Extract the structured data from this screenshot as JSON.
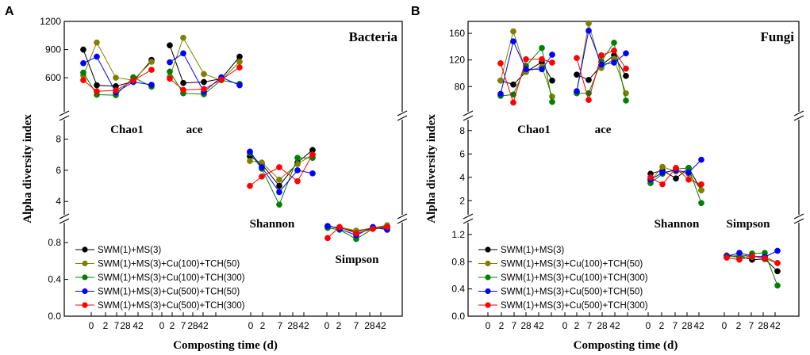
{
  "chart_data": [
    {
      "type": "line",
      "panel_letter": "A",
      "title": "Bacteria",
      "xlabel": "Composting time (d)",
      "ylabel": "Alpha diversity index",
      "days": [
        "0",
        "2",
        "7",
        "28",
        "42"
      ],
      "segments": [
        {
          "ylim": [
            0.0,
            1.0
          ],
          "yticks": [
            "0.0",
            "0.4",
            "0.8"
          ]
        },
        {
          "ylim": [
            3.3,
            9.3
          ],
          "yticks": [
            "4",
            "6",
            "8"
          ]
        },
        {
          "ylim": [
            230,
            1200
          ],
          "yticks": [
            "600",
            "900",
            "1200"
          ]
        }
      ],
      "groups": [
        {
          "name": "Chao1",
          "segment": 2
        },
        {
          "name": "ace",
          "segment": 2
        },
        {
          "name": "Shannon",
          "segment": 1
        },
        {
          "name": "Simpson",
          "segment": 0
        }
      ],
      "series": [
        {
          "name": "SWM(1)+MS(3)",
          "color": "#000000",
          "values": [
            [
              900,
              520,
              510,
              560,
              790
            ],
            [
              945,
              545,
              555,
              590,
              825
            ],
            [
              6.9,
              6.4,
              5.0,
              6.5,
              7.3
            ],
            [
              0.98,
              0.96,
              0.92,
              0.96,
              0.98
            ]
          ]
        },
        {
          "name": "SWM(1)+MS(3)+Cu(100)+TCH(50)",
          "color": "#808000",
          "values": [
            [
              625,
              975,
              600,
              575,
              770
            ],
            [
              610,
              1025,
              640,
              575,
              770
            ],
            [
              6.6,
              6.5,
              5.4,
              6.4,
              7.0
            ],
            [
              0.97,
              0.97,
              0.93,
              0.96,
              0.99
            ]
          ]
        },
        {
          "name": "SWM(1)+MS(3)+Cu(100)+TCH(300)",
          "color": "#008000",
          "values": [
            [
              655,
              420,
              415,
              605,
              505
            ],
            [
              665,
              435,
              425,
              575,
              535
            ],
            [
              7.1,
              6.1,
              3.8,
              6.8,
              6.8
            ],
            [
              0.96,
              0.94,
              0.84,
              0.95,
              0.96
            ]
          ]
        },
        {
          "name": "SWM(1)+MS(3)+Cu(500)+TCH(50)",
          "color": "#0000ff",
          "values": [
            [
              755,
              825,
              445,
              555,
              525
            ],
            [
              765,
              860,
              450,
              605,
              520
            ],
            [
              7.2,
              6.2,
              4.6,
              6.0,
              5.8
            ],
            [
              0.98,
              0.95,
              0.88,
              0.97,
              0.94
            ]
          ]
        },
        {
          "name": "SWM(1)+MS(3)+Cu(500)+TCH(300)",
          "color": "#ff0000",
          "values": [
            [
              575,
              455,
              465,
              570,
              685
            ],
            [
              590,
              470,
              480,
              580,
              710
            ],
            [
              5.0,
              5.6,
              6.2,
              5.3,
              7.0
            ],
            [
              0.85,
              0.97,
              0.9,
              0.95,
              0.97
            ]
          ]
        }
      ]
    },
    {
      "type": "line",
      "panel_letter": "B",
      "title": "Fungi",
      "xlabel": "Composting time (d)",
      "ylabel": "Alpha diversity index",
      "days": [
        "0",
        "2",
        "7",
        "28",
        "42"
      ],
      "segments": [
        {
          "ylim": [
            0.0,
            1.35
          ],
          "yticks": [
            "0.0",
            "0.4",
            "0.8",
            "1.2"
          ]
        },
        {
          "ylim": [
            1.0,
            9.0
          ],
          "yticks": [
            "2",
            "4",
            "6",
            "8"
          ]
        },
        {
          "ylim": [
            41,
            178
          ],
          "yticks": [
            "80",
            "120",
            "160"
          ]
        }
      ],
      "groups": [
        {
          "name": "Chao1",
          "segment": 2
        },
        {
          "name": "ace",
          "segment": 2
        },
        {
          "name": "Shannon",
          "segment": 1
        },
        {
          "name": "Simpson",
          "segment": 0
        }
      ],
      "series": [
        {
          "name": "SWM(1)+MS(3)",
          "color": "#000000",
          "values": [
            [
              89,
              83,
              102,
              117,
              89
            ],
            [
              98,
              90,
              112,
              127,
              96
            ],
            [
              4.3,
              4.6,
              3.9,
              4.8,
              2.9
            ],
            [
              0.89,
              0.88,
              0.83,
              0.84,
              0.66
            ]
          ]
        },
        {
          "name": "SWM(1)+MS(3)+Cu(100)+TCH(50)",
          "color": "#808000",
          "values": [
            [
              89,
              163,
              102,
              110,
              65
            ],
            [
              72,
              175,
              108,
              122,
              70
            ],
            [
              3.7,
              4.9,
              4.5,
              4.3,
              2.9
            ],
            [
              0.87,
              0.9,
              0.87,
              0.88,
              0.78
            ]
          ]
        },
        {
          "name": "SWM(1)+MS(3)+Cu(100)+TCH(300)",
          "color": "#008000",
          "values": [
            [
              66,
              68,
              111,
              138,
              57
            ],
            [
              70,
              70,
              118,
              146,
              59
            ],
            [
              3.5,
              4.3,
              4.7,
              4.8,
              1.8
            ],
            [
              0.89,
              0.86,
              0.92,
              0.93,
              0.45
            ]
          ]
        },
        {
          "name": "SWM(1)+MS(3)+Cu(500)+TCH(50)",
          "color": "#0000ff",
          "values": [
            [
              69,
              148,
              106,
              106,
              128
            ],
            [
              73,
              164,
              113,
              116,
              130
            ],
            [
              3.8,
              4.4,
              4.6,
              4.4,
              5.5
            ],
            [
              0.88,
              0.93,
              0.88,
              0.87,
              0.96
            ]
          ]
        },
        {
          "name": "SWM(1)+MS(3)+Cu(500)+TCH(300)",
          "color": "#ff0000",
          "values": [
            [
              115,
              56,
              121,
              121,
              116
            ],
            [
              123,
              60,
              127,
              134,
              107
            ],
            [
              4.0,
              3.4,
              4.8,
              3.8,
              3.4
            ],
            [
              0.86,
              0.83,
              0.88,
              0.85,
              0.78
            ]
          ]
        }
      ]
    }
  ]
}
